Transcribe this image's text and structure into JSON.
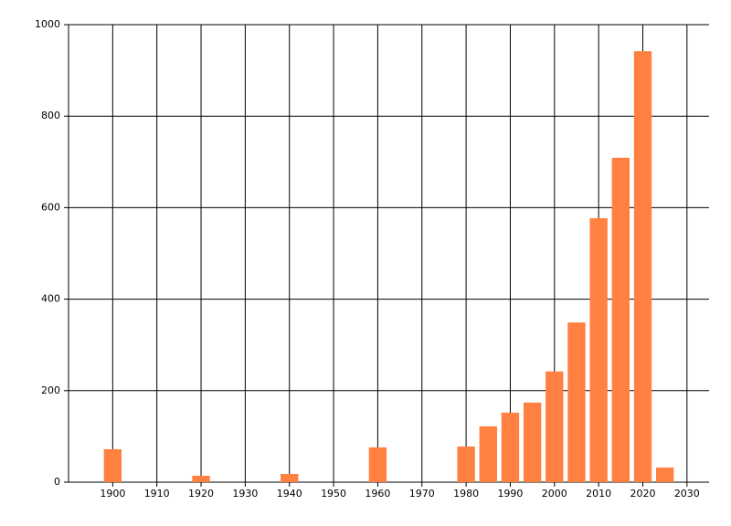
{
  "chart_data": {
    "type": "bar",
    "x": [
      1900,
      1920,
      1940,
      1960,
      1980,
      1985,
      1990,
      1995,
      2000,
      2005,
      2010,
      2015,
      2020,
      2025
    ],
    "values": [
      72,
      14,
      18,
      76,
      78,
      122,
      152,
      174,
      242,
      349,
      577,
      709,
      942,
      32
    ],
    "color": "#ff8040",
    "xlim": [
      1890,
      2035
    ],
    "xticks": [
      1900,
      1910,
      1920,
      1930,
      1940,
      1950,
      1960,
      1970,
      1980,
      1990,
      2000,
      2010,
      2020,
      2030
    ],
    "ylim": [
      0,
      1000
    ],
    "yticks": [
      0,
      200,
      400,
      600,
      800,
      1000
    ],
    "grid": true
  }
}
